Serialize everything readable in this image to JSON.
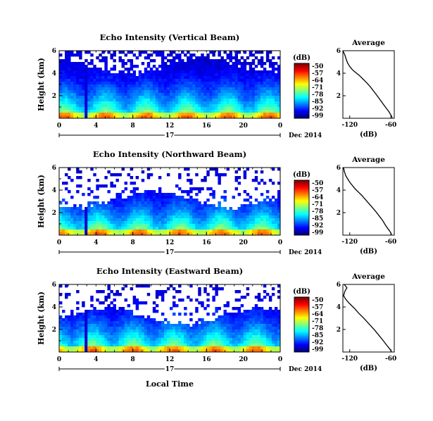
{
  "chart_data": [
    {
      "type": "heatmap",
      "title": "Echo Intensity (Vertical Beam)",
      "ylabel": "Height (km)",
      "x_ticks": [
        "0",
        "4",
        "8",
        "12",
        "16",
        "20",
        "0"
      ],
      "y_ticks": [
        "6",
        "4",
        "2"
      ],
      "xlim": [
        0,
        24
      ],
      "ylim": [
        0,
        6
      ],
      "colorbar": {
        "unit": "(dB)",
        "labels": [
          "-50",
          "-57",
          "-64",
          "-71",
          "-78",
          "-85",
          "-92",
          "-99"
        ],
        "range": [
          -99,
          -50
        ]
      },
      "date_row": {
        "day": "17",
        "date": "Dec 2014"
      },
      "seed": 1,
      "profile": {
        "title": "Average",
        "xlabel": "(dB)",
        "x_ticks": [
          "-120",
          "-60"
        ],
        "y_ticks": [
          "6",
          "4",
          "2"
        ],
        "xlim": [
          -130,
          -55
        ],
        "ylim": [
          0,
          6
        ],
        "x": [
          -130,
          -127,
          -125,
          -123,
          -120,
          -116,
          -111,
          -106,
          -101,
          -96,
          -90,
          -85,
          -80,
          -74,
          -68,
          -63,
          -60,
          -58
        ],
        "y": [
          6.0,
          5.6,
          5.2,
          4.9,
          4.6,
          4.3,
          4.05,
          3.8,
          3.5,
          3.2,
          2.8,
          2.4,
          2.0,
          1.5,
          1.0,
          0.6,
          0.3,
          0.05
        ]
      }
    },
    {
      "type": "heatmap",
      "title": "Echo Intensity (Northward Beam)",
      "ylabel": "Height (km)",
      "x_ticks": [
        "0",
        "4",
        "8",
        "12",
        "16",
        "20",
        "0"
      ],
      "y_ticks": [
        "6",
        "4",
        "2"
      ],
      "xlim": [
        0,
        24
      ],
      "ylim": [
        0,
        6
      ],
      "colorbar": {
        "unit": "(dB)",
        "labels": [
          "-50",
          "-57",
          "-64",
          "-71",
          "-78",
          "-85",
          "-92",
          "-99"
        ],
        "range": [
          -99,
          -50
        ]
      },
      "date_row": {
        "day": "17",
        "date": "Dec 2014"
      },
      "seed": 2,
      "profile": {
        "title": "Average",
        "xlabel": "(dB)",
        "x_ticks": [
          "-120",
          "-60"
        ],
        "y_ticks": [
          "6",
          "4",
          "2"
        ],
        "xlim": [
          -130,
          -55
        ],
        "ylim": [
          0,
          6
        ],
        "x": [
          -129,
          -128,
          -126,
          -123,
          -120,
          -116,
          -112,
          -107,
          -102,
          -97,
          -92,
          -87,
          -82,
          -77,
          -72,
          -68,
          -64,
          -61,
          -59
        ],
        "y": [
          6.0,
          5.7,
          5.3,
          5.0,
          4.7,
          4.4,
          4.1,
          3.8,
          3.5,
          3.15,
          2.8,
          2.45,
          2.1,
          1.7,
          1.3,
          0.9,
          0.55,
          0.3,
          0.05
        ]
      }
    },
    {
      "type": "heatmap",
      "title": "Echo Intensity (Eastward Beam)",
      "ylabel": "Height (km)",
      "x_ticks": [
        "0",
        "4",
        "8",
        "12",
        "16",
        "20",
        "0"
      ],
      "y_ticks": [
        "6",
        "4",
        "2"
      ],
      "xlim": [
        0,
        24
      ],
      "ylim": [
        0,
        6
      ],
      "colorbar": {
        "unit": "(dB)",
        "labels": [
          "-50",
          "-57",
          "-64",
          "-71",
          "-78",
          "-85",
          "-92",
          "-99"
        ],
        "range": [
          -99,
          -50
        ]
      },
      "date_row": {
        "day": "17",
        "date": "Dec 2014"
      },
      "xlabel": "Local Time",
      "seed": 3,
      "profile": {
        "title": "Average",
        "xlabel": "(dB)",
        "x_ticks": [
          "-120",
          "-60"
        ],
        "y_ticks": [
          "6",
          "4",
          "2"
        ],
        "xlim": [
          -130,
          -55
        ],
        "ylim": [
          0,
          6
        ],
        "x": [
          -128,
          -124,
          -127,
          -129,
          -126,
          -122,
          -117,
          -112,
          -107,
          -101,
          -95,
          -89,
          -83,
          -77,
          -71,
          -66,
          -62,
          -59
        ],
        "y": [
          6.0,
          5.7,
          5.4,
          5.0,
          4.7,
          4.4,
          4.1,
          3.8,
          3.45,
          3.1,
          2.7,
          2.3,
          1.9,
          1.45,
          1.0,
          0.6,
          0.3,
          0.05
        ]
      }
    }
  ]
}
